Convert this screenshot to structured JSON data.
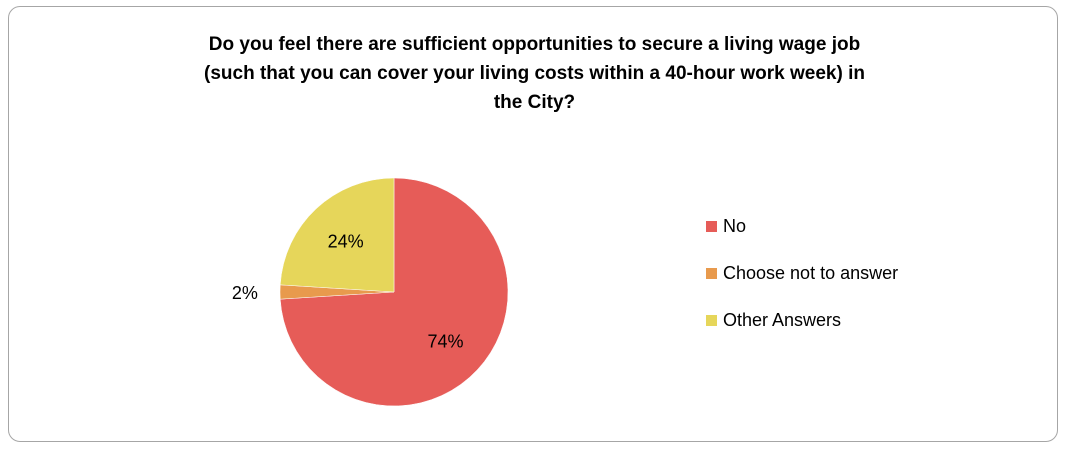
{
  "chart_data": {
    "type": "pie",
    "title_lines": [
      "Do you feel there are sufficient opportunities to secure a living wage job",
      "(such that you can cover your living costs within a 40-hour work week) in",
      "the City?"
    ],
    "categories": [
      "No",
      "Choose not to answer",
      "Other Answers"
    ],
    "values": [
      74,
      2,
      24
    ],
    "data_labels": [
      "74%",
      "2%",
      "24%"
    ],
    "colors": [
      "#e65c58",
      "#e89a4d",
      "#e6d65a"
    ],
    "start_angle_deg": 0,
    "direction": "clockwise",
    "legend_position": "right"
  }
}
